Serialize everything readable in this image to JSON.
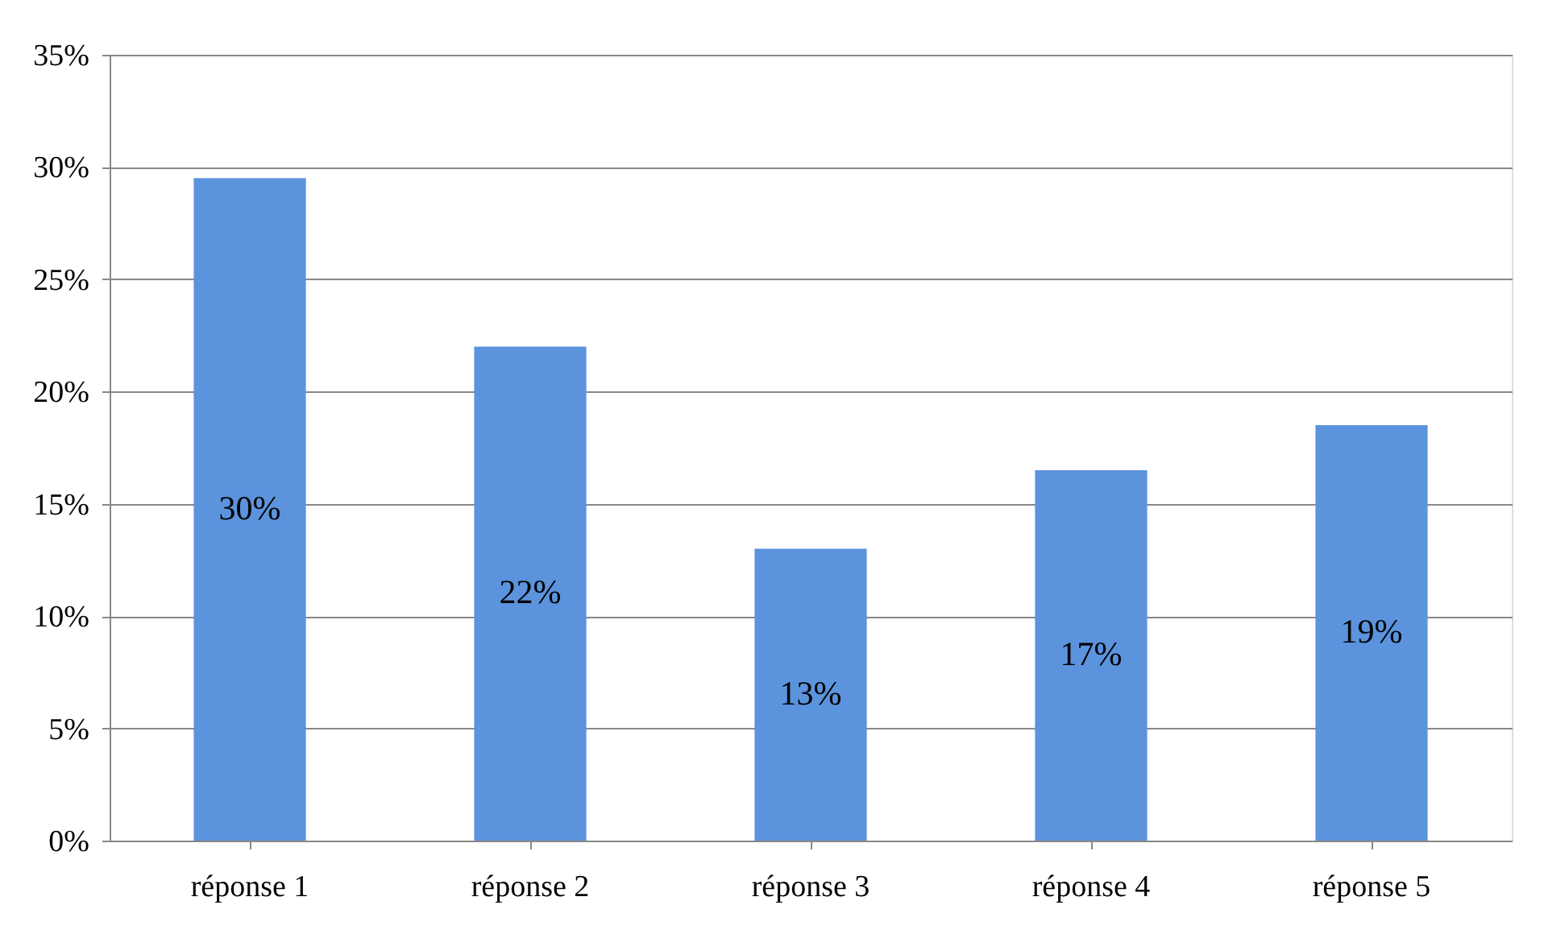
{
  "chart_data": {
    "type": "bar",
    "categories": [
      "réponse 1",
      "réponse 2",
      "réponse 3",
      "réponse 4",
      "réponse 5"
    ],
    "values": [
      29.5,
      22,
      13,
      16.5,
      18.5
    ],
    "value_labels": [
      "30%",
      "22%",
      "13%",
      "17%",
      "19%"
    ],
    "color": "#5b93dd",
    "ylim": [
      0,
      35
    ],
    "yticks": [
      {
        "value": 0,
        "label": "0%"
      },
      {
        "value": 5,
        "label": "5%"
      },
      {
        "value": 10,
        "label": "10%"
      },
      {
        "value": 15,
        "label": "15%"
      },
      {
        "value": 20,
        "label": "20%"
      },
      {
        "value": 25,
        "label": "25%"
      },
      {
        "value": 30,
        "label": "30%"
      },
      {
        "value": 35,
        "label": "35%"
      }
    ],
    "grid": "y"
  }
}
